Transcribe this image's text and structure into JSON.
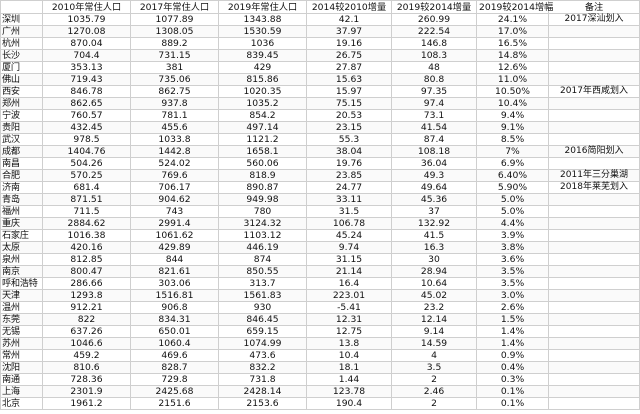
{
  "headers": [
    "",
    "2010年常住人口",
    "2017年常住人口",
    "2019年常住人口",
    "2014较2010增量",
    "2019较2014增量",
    "2019较2014增幅",
    "备注"
  ],
  "rows": [
    {
      "city": "深圳",
      "p2010": "1035.79",
      "p2017": "1077.89",
      "p2019": "1343.88",
      "inc1": "42.1",
      "inc2": "260.99",
      "rate": "24.1%",
      "note": "2017深汕划入"
    },
    {
      "city": "广州",
      "p2010": "1270.08",
      "p2017": "1308.05",
      "p2019": "1530.59",
      "inc1": "37.97",
      "inc2": "222.54",
      "rate": "17.0%",
      "note": ""
    },
    {
      "city": "杭州",
      "p2010": "870.04",
      "p2017": "889.2",
      "p2019": "1036",
      "inc1": "19.16",
      "inc2": "146.8",
      "rate": "16.5%",
      "note": ""
    },
    {
      "city": "长沙",
      "p2010": "704.4",
      "p2017": "731.15",
      "p2019": "839.45",
      "inc1": "26.75",
      "inc2": "108.3",
      "rate": "14.8%",
      "note": ""
    },
    {
      "city": "厦门",
      "p2010": "353.13",
      "p2017": "381",
      "p2019": "429",
      "inc1": "27.87",
      "inc2": "48",
      "rate": "12.6%",
      "note": ""
    },
    {
      "city": "佛山",
      "p2010": "719.43",
      "p2017": "735.06",
      "p2019": "815.86",
      "inc1": "15.63",
      "inc2": "80.8",
      "rate": "11.0%",
      "note": ""
    },
    {
      "city": "西安",
      "p2010": "846.78",
      "p2017": "862.75",
      "p2019": "1020.35",
      "inc1": "15.97",
      "inc2": "97.35",
      "rate": "10.50%",
      "note": "2017年西咸划入"
    },
    {
      "city": "郑州",
      "p2010": "862.65",
      "p2017": "937.8",
      "p2019": "1035.2",
      "inc1": "75.15",
      "inc2": "97.4",
      "rate": "10.4%",
      "note": ""
    },
    {
      "city": "宁波",
      "p2010": "760.57",
      "p2017": "781.1",
      "p2019": "854.2",
      "inc1": "20.53",
      "inc2": "73.1",
      "rate": "9.4%",
      "note": ""
    },
    {
      "city": "贵阳",
      "p2010": "432.45",
      "p2017": "455.6",
      "p2019": "497.14",
      "inc1": "23.15",
      "inc2": "41.54",
      "rate": "9.1%",
      "note": ""
    },
    {
      "city": "武汉",
      "p2010": "978.5",
      "p2017": "1033.8",
      "p2019": "1121.2",
      "inc1": "55.3",
      "inc2": "87.4",
      "rate": "8.5%",
      "note": ""
    },
    {
      "city": "成都",
      "p2010": "1404.76",
      "p2017": "1442.8",
      "p2019": "1658.1",
      "inc1": "38.04",
      "inc2": "108.18",
      "rate": "7%",
      "note": "2016简阳划入"
    },
    {
      "city": "南昌",
      "p2010": "504.26",
      "p2017": "524.02",
      "p2019": "560.06",
      "inc1": "19.76",
      "inc2": "36.04",
      "rate": "6.9%",
      "note": ""
    },
    {
      "city": "合肥",
      "p2010": "570.25",
      "p2017": "769.6",
      "p2019": "818.9",
      "inc1": "23.85",
      "inc2": "49.3",
      "rate": "6.40%",
      "note": "2011年三分巢湖"
    },
    {
      "city": "济南",
      "p2010": "681.4",
      "p2017": "706.17",
      "p2019": "890.87",
      "inc1": "24.77",
      "inc2": "49.64",
      "rate": "5.90%",
      "note": "2018年莱芜划入"
    },
    {
      "city": "青岛",
      "p2010": "871.51",
      "p2017": "904.62",
      "p2019": "949.98",
      "inc1": "33.11",
      "inc2": "45.36",
      "rate": "5.0%",
      "note": ""
    },
    {
      "city": "福州",
      "p2010": "711.5",
      "p2017": "743",
      "p2019": "780",
      "inc1": "31.5",
      "inc2": "37",
      "rate": "5.0%",
      "note": ""
    },
    {
      "city": "重庆",
      "p2010": "2884.62",
      "p2017": "2991.4",
      "p2019": "3124.32",
      "inc1": "106.78",
      "inc2": "132.92",
      "rate": "4.4%",
      "note": ""
    },
    {
      "city": "石家庄",
      "p2010": "1016.38",
      "p2017": "1061.62",
      "p2019": "1103.12",
      "inc1": "45.24",
      "inc2": "41.5",
      "rate": "3.9%",
      "note": ""
    },
    {
      "city": "太原",
      "p2010": "420.16",
      "p2017": "429.89",
      "p2019": "446.19",
      "inc1": "9.74",
      "inc2": "16.3",
      "rate": "3.8%",
      "note": ""
    },
    {
      "city": "泉州",
      "p2010": "812.85",
      "p2017": "844",
      "p2019": "874",
      "inc1": "31.15",
      "inc2": "30",
      "rate": "3.6%",
      "note": ""
    },
    {
      "city": "南京",
      "p2010": "800.47",
      "p2017": "821.61",
      "p2019": "850.55",
      "inc1": "21.14",
      "inc2": "28.94",
      "rate": "3.5%",
      "note": ""
    },
    {
      "city": "呼和浩特",
      "p2010": "286.66",
      "p2017": "303.06",
      "p2019": "313.7",
      "inc1": "16.4",
      "inc2": "10.64",
      "rate": "3.5%",
      "note": ""
    },
    {
      "city": "天津",
      "p2010": "1293.8",
      "p2017": "1516.81",
      "p2019": "1561.83",
      "inc1": "223.01",
      "inc2": "45.02",
      "rate": "3.0%",
      "note": ""
    },
    {
      "city": "温州",
      "p2010": "912.21",
      "p2017": "906.8",
      "p2019": "930",
      "inc1": "-5.41",
      "inc2": "23.2",
      "rate": "2.6%",
      "note": ""
    },
    {
      "city": "东莞",
      "p2010": "822",
      "p2017": "834.31",
      "p2019": "846.45",
      "inc1": "12.31",
      "inc2": "12.14",
      "rate": "1.5%",
      "note": ""
    },
    {
      "city": "无锡",
      "p2010": "637.26",
      "p2017": "650.01",
      "p2019": "659.15",
      "inc1": "12.75",
      "inc2": "9.14",
      "rate": "1.4%",
      "note": ""
    },
    {
      "city": "苏州",
      "p2010": "1046.6",
      "p2017": "1060.4",
      "p2019": "1074.99",
      "inc1": "13.8",
      "inc2": "14.59",
      "rate": "1.4%",
      "note": ""
    },
    {
      "city": "常州",
      "p2010": "459.2",
      "p2017": "469.6",
      "p2019": "473.6",
      "inc1": "10.4",
      "inc2": "4",
      "rate": "0.9%",
      "note": ""
    },
    {
      "city": "沈阳",
      "p2010": "810.6",
      "p2017": "828.7",
      "p2019": "832.2",
      "inc1": "18.1",
      "inc2": "3.5",
      "rate": "0.4%",
      "note": ""
    },
    {
      "city": "南通",
      "p2010": "728.36",
      "p2017": "729.8",
      "p2019": "731.8",
      "inc1": "1.44",
      "inc2": "2",
      "rate": "0.3%",
      "note": ""
    },
    {
      "city": "上海",
      "p2010": "2301.9",
      "p2017": "2425.68",
      "p2019": "2428.14",
      "inc1": "123.78",
      "inc2": "2.46",
      "rate": "0.1%",
      "note": ""
    },
    {
      "city": "北京",
      "p2010": "1961.2",
      "p2017": "2151.6",
      "p2019": "2153.6",
      "inc1": "190.4",
      "inc2": "2",
      "rate": "0.1%",
      "note": ""
    }
  ]
}
